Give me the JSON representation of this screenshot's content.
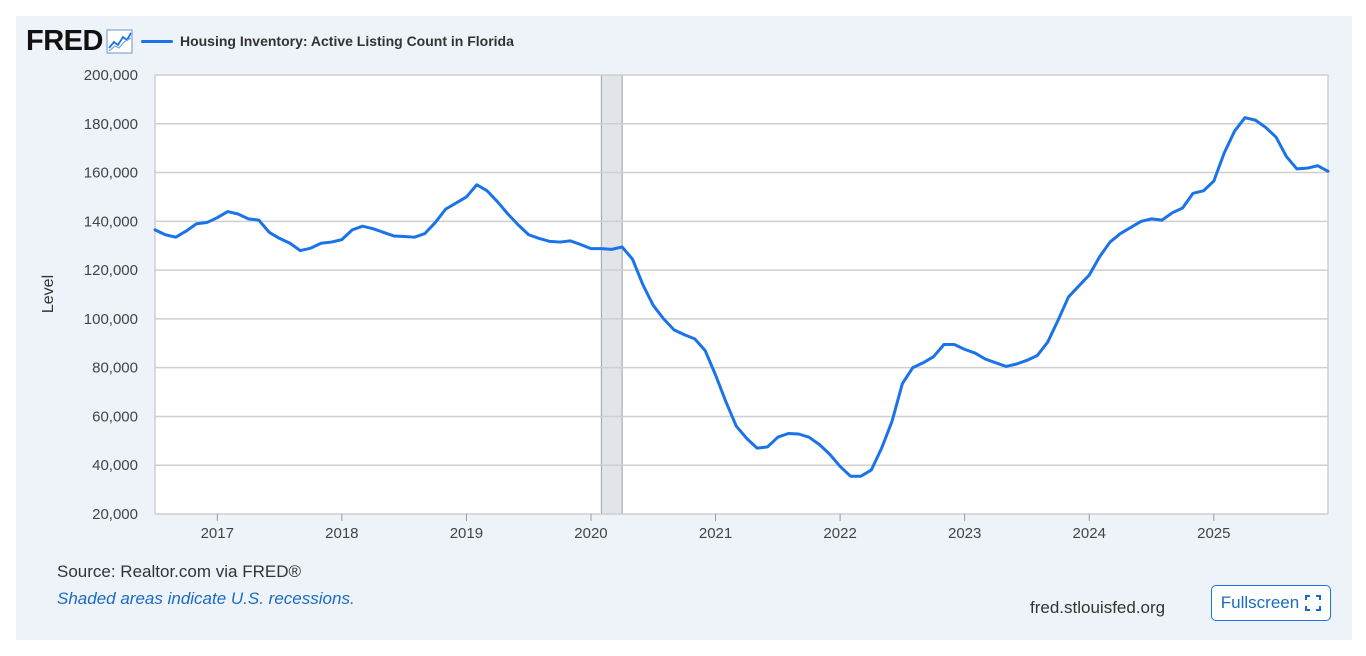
{
  "header": {
    "logo": "FRED",
    "logo_icon": "trend-chart-icon",
    "legend_label": "Housing Inventory: Active Listing Count in Florida"
  },
  "footer": {
    "source": "Source: Realtor.com via FRED®",
    "note": "Shaded areas indicate U.S. recessions.",
    "site": "fred.stlouisfed.org",
    "fullscreen_label": "Fullscreen",
    "fullscreen_icon": "expand-corners-icon"
  },
  "colors": {
    "series": "#1a73e8",
    "recession": "#e1e5ea",
    "background": "#eef3f9"
  },
  "chart_data": {
    "type": "line",
    "ylabel": "Level",
    "ylim": [
      20000,
      200000
    ],
    "yticks": [
      20000,
      40000,
      60000,
      80000,
      100000,
      120000,
      140000,
      160000,
      180000,
      200000
    ],
    "ytick_labels": [
      "20,000",
      "40,000",
      "60,000",
      "80,000",
      "100,000",
      "120,000",
      "140,000",
      "160,000",
      "180,000",
      "200,000"
    ],
    "xlim": [
      "2016-07-01",
      "2025-12-01"
    ],
    "xticks": [
      "2017-01-01",
      "2018-01-01",
      "2019-01-01",
      "2020-01-01",
      "2021-01-01",
      "2022-01-01",
      "2023-01-01",
      "2024-01-01",
      "2025-01-01"
    ],
    "xtick_labels": [
      "2017",
      "2018",
      "2019",
      "2020",
      "2021",
      "2022",
      "2023",
      "2024",
      "2025"
    ],
    "grid": true,
    "recessions": [
      [
        "2020-02-01",
        "2020-04-01"
      ]
    ],
    "series": [
      {
        "name": "Housing Inventory: Active Listing Count in Florida",
        "x": [
          "2016-07",
          "2016-08",
          "2016-09",
          "2016-10",
          "2016-11",
          "2016-12",
          "2017-01",
          "2017-02",
          "2017-03",
          "2017-04",
          "2017-05",
          "2017-06",
          "2017-07",
          "2017-08",
          "2017-09",
          "2017-10",
          "2017-11",
          "2017-12",
          "2018-01",
          "2018-02",
          "2018-03",
          "2018-04",
          "2018-05",
          "2018-06",
          "2018-07",
          "2018-08",
          "2018-09",
          "2018-10",
          "2018-11",
          "2018-12",
          "2019-01",
          "2019-02",
          "2019-03",
          "2019-04",
          "2019-05",
          "2019-06",
          "2019-07",
          "2019-08",
          "2019-09",
          "2019-10",
          "2019-11",
          "2019-12",
          "2020-01",
          "2020-02",
          "2020-03",
          "2020-04",
          "2020-05",
          "2020-06",
          "2020-07",
          "2020-08",
          "2020-09",
          "2020-10",
          "2020-11",
          "2020-12",
          "2021-01",
          "2021-02",
          "2021-03",
          "2021-04",
          "2021-05",
          "2021-06",
          "2021-07",
          "2021-08",
          "2021-09",
          "2021-10",
          "2021-11",
          "2021-12",
          "2022-01",
          "2022-02",
          "2022-03",
          "2022-04",
          "2022-05",
          "2022-06",
          "2022-07",
          "2022-08",
          "2022-09",
          "2022-10",
          "2022-11",
          "2022-12",
          "2023-01",
          "2023-02",
          "2023-03",
          "2023-04",
          "2023-05",
          "2023-06",
          "2023-07",
          "2023-08",
          "2023-09",
          "2023-10",
          "2023-11",
          "2023-12",
          "2024-01",
          "2024-02",
          "2024-03",
          "2024-04",
          "2024-05",
          "2024-06",
          "2024-07",
          "2024-08",
          "2024-09",
          "2024-10",
          "2024-11",
          "2024-12",
          "2025-01",
          "2025-02",
          "2025-03",
          "2025-04",
          "2025-05",
          "2025-06",
          "2025-07",
          "2025-08",
          "2025-09",
          "2025-10",
          "2025-11",
          "2025-12"
        ],
        "values": [
          136500,
          134500,
          133500,
          136000,
          139000,
          139500,
          141500,
          144000,
          143000,
          141000,
          140500,
          135500,
          133000,
          131000,
          128000,
          129000,
          131000,
          131500,
          132500,
          136500,
          138000,
          137000,
          135500,
          134000,
          133800,
          133500,
          135000,
          139500,
          145000,
          147500,
          150000,
          155000,
          152500,
          148000,
          143000,
          138500,
          134500,
          133000,
          131800,
          131500,
          132000,
          130500,
          128800,
          128800,
          128500,
          129500,
          124500,
          114000,
          105500,
          100000,
          95500,
          93500,
          91800,
          87000,
          77000,
          66000,
          56000,
          51000,
          47000,
          47500,
          51500,
          53000,
          52800,
          51500,
          48500,
          44500,
          39500,
          35500,
          35500,
          38000,
          47000,
          58000,
          73500,
          80000,
          82000,
          84500,
          89500,
          89500,
          87500,
          86000,
          83500,
          82000,
          80500,
          81500,
          83000,
          85000,
          90500,
          99500,
          109000,
          113500,
          118000,
          125500,
          131500,
          135000,
          137500,
          140000,
          141000,
          140500,
          143500,
          145500,
          151500,
          152500,
          156500,
          168000,
          177000,
          182500,
          181500,
          178500,
          174500,
          166500,
          161500,
          161800,
          162800,
          160500
        ]
      }
    ]
  }
}
